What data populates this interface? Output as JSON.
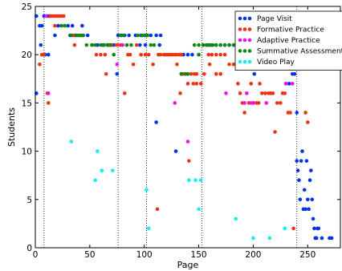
{
  "chart_data": {
    "type": "scatter",
    "title": "",
    "xlabel": "Page",
    "ylabel": "Students",
    "xlim": [
      0,
      280
    ],
    "ylim": [
      0,
      25
    ],
    "xticks": [
      0,
      50,
      100,
      150,
      200,
      250
    ],
    "yticks": [
      0,
      5,
      10,
      15,
      20,
      25
    ],
    "vertical_dotted_lines_x": [
      8,
      76,
      102,
      153,
      240
    ],
    "legend_position": "top-right",
    "series": [
      {
        "name": "Page Visit",
        "color": "#0033ee",
        "points": [
          [
            1,
            24
          ],
          [
            4,
            23
          ],
          [
            6,
            23
          ],
          [
            8,
            24
          ],
          [
            11,
            24
          ],
          [
            13,
            24
          ],
          [
            1,
            16
          ],
          [
            5,
            21
          ],
          [
            9,
            20
          ],
          [
            12,
            20
          ],
          [
            21,
            23
          ],
          [
            30,
            23
          ],
          [
            34,
            23
          ],
          [
            43,
            23
          ],
          [
            18,
            22
          ],
          [
            32,
            22
          ],
          [
            37,
            22
          ],
          [
            42,
            22
          ],
          [
            48,
            22
          ],
          [
            52,
            21
          ],
          [
            57,
            21
          ],
          [
            62,
            21
          ],
          [
            67,
            21
          ],
          [
            72,
            21
          ],
          [
            76,
            22
          ],
          [
            79,
            22
          ],
          [
            82,
            22
          ],
          [
            86,
            22
          ],
          [
            92,
            22
          ],
          [
            97,
            22
          ],
          [
            101,
            22
          ],
          [
            106,
            22
          ],
          [
            111,
            22
          ],
          [
            115,
            22
          ],
          [
            75,
            18
          ],
          [
            96,
            21
          ],
          [
            101,
            21
          ],
          [
            114,
            21
          ],
          [
            136,
            20
          ],
          [
            140,
            20
          ],
          [
            144,
            20
          ],
          [
            150,
            20
          ],
          [
            154,
            21
          ],
          [
            158,
            21
          ],
          [
            162,
            21
          ],
          [
            166,
            21
          ],
          [
            170,
            21
          ],
          [
            174,
            21
          ],
          [
            178,
            21
          ],
          [
            182,
            21
          ],
          [
            186,
            21
          ],
          [
            190,
            21
          ],
          [
            194,
            21
          ],
          [
            198,
            21
          ],
          [
            202,
            21
          ],
          [
            206,
            21
          ],
          [
            210,
            21
          ],
          [
            214,
            21
          ],
          [
            218,
            21
          ],
          [
            222,
            21
          ],
          [
            226,
            21
          ],
          [
            230,
            21
          ],
          [
            234,
            21
          ],
          [
            198,
            19
          ],
          [
            206,
            19
          ],
          [
            214,
            19
          ],
          [
            222,
            19
          ],
          [
            230,
            19
          ],
          [
            235,
            19
          ],
          [
            238,
            19
          ],
          [
            201,
            18
          ],
          [
            230,
            17
          ],
          [
            233,
            17
          ],
          [
            236,
            18
          ],
          [
            238,
            18
          ],
          [
            240,
            14
          ],
          [
            111,
            13
          ],
          [
            129,
            10
          ],
          [
            240,
            9
          ],
          [
            241,
            8
          ],
          [
            242,
            7
          ],
          [
            243,
            5
          ],
          [
            244,
            9
          ],
          [
            245,
            10
          ],
          [
            246,
            4
          ],
          [
            247,
            6
          ],
          [
            248,
            4
          ],
          [
            249,
            9
          ],
          [
            250,
            5
          ],
          [
            251,
            4
          ],
          [
            252,
            7
          ],
          [
            253,
            8
          ],
          [
            254,
            5
          ],
          [
            255,
            3
          ],
          [
            256,
            2
          ],
          [
            257,
            1
          ],
          [
            258,
            1
          ],
          [
            259,
            2
          ],
          [
            260,
            2
          ],
          [
            263,
            1
          ],
          [
            270,
            1
          ],
          [
            272,
            1
          ]
        ]
      },
      {
        "name": "Formative Practice",
        "color": "#ee3311",
        "points": [
          [
            4,
            19
          ],
          [
            6,
            20
          ],
          [
            8,
            20
          ],
          [
            11,
            16
          ],
          [
            12,
            15
          ],
          [
            14,
            24
          ],
          [
            16,
            24
          ],
          [
            18,
            24
          ],
          [
            20,
            24
          ],
          [
            22,
            24
          ],
          [
            24,
            24
          ],
          [
            26,
            24
          ],
          [
            18,
            23
          ],
          [
            35,
            22
          ],
          [
            36,
            21
          ],
          [
            40,
            22
          ],
          [
            44,
            22
          ],
          [
            56,
            20
          ],
          [
            60,
            20
          ],
          [
            64,
            20
          ],
          [
            65,
            18
          ],
          [
            68,
            21
          ],
          [
            70,
            21
          ],
          [
            75,
            21
          ],
          [
            78,
            21
          ],
          [
            80,
            21
          ],
          [
            84,
            21
          ],
          [
            82,
            16
          ],
          [
            85,
            20
          ],
          [
            87,
            20
          ],
          [
            90,
            19
          ],
          [
            93,
            21
          ],
          [
            97,
            20
          ],
          [
            101,
            20
          ],
          [
            104,
            20
          ],
          [
            108,
            19
          ],
          [
            113,
            20
          ],
          [
            115,
            20
          ],
          [
            118,
            20
          ],
          [
            120,
            20
          ],
          [
            122,
            20
          ],
          [
            124,
            20
          ],
          [
            126,
            20
          ],
          [
            128,
            20
          ],
          [
            130,
            20
          ],
          [
            132,
            20
          ],
          [
            134,
            20
          ],
          [
            130,
            19
          ],
          [
            134,
            18
          ],
          [
            136,
            18
          ],
          [
            138,
            18
          ],
          [
            133,
            16
          ],
          [
            140,
            17
          ],
          [
            143,
            18
          ],
          [
            146,
            18
          ],
          [
            148,
            18
          ],
          [
            145,
            17
          ],
          [
            148,
            17
          ],
          [
            152,
            17
          ],
          [
            155,
            18
          ],
          [
            159,
            20
          ],
          [
            162,
            20
          ],
          [
            166,
            20
          ],
          [
            170,
            20
          ],
          [
            174,
            20
          ],
          [
            160,
            19
          ],
          [
            166,
            18
          ],
          [
            170,
            18
          ],
          [
            178,
            19
          ],
          [
            182,
            19
          ],
          [
            186,
            17
          ],
          [
            188,
            16
          ],
          [
            190,
            15
          ],
          [
            192,
            15
          ],
          [
            194,
            16
          ],
          [
            196,
            15
          ],
          [
            198,
            17
          ],
          [
            200,
            15
          ],
          [
            203,
            15
          ],
          [
            205,
            15
          ],
          [
            206,
            17
          ],
          [
            208,
            16
          ],
          [
            211,
            16
          ],
          [
            214,
            16
          ],
          [
            216,
            16
          ],
          [
            218,
            16
          ],
          [
            220,
            12
          ],
          [
            222,
            15
          ],
          [
            225,
            15
          ],
          [
            227,
            16
          ],
          [
            229,
            16
          ],
          [
            232,
            14
          ],
          [
            234,
            14
          ],
          [
            237,
            2
          ],
          [
            248,
            14
          ],
          [
            250,
            13
          ],
          [
            112,
            4
          ],
          [
            141,
            9
          ],
          [
            192,
            14
          ]
        ]
      },
      {
        "name": "Adaptive Practice",
        "color": "#ee11ee",
        "points": [
          [
            10,
            24
          ],
          [
            12,
            16
          ],
          [
            75,
            19
          ],
          [
            80,
            21
          ],
          [
            128,
            15
          ],
          [
            134,
            18
          ],
          [
            140,
            11
          ],
          [
            175,
            16
          ],
          [
            192,
            15
          ],
          [
            194,
            16
          ],
          [
            198,
            15
          ],
          [
            200,
            15
          ],
          [
            212,
            15
          ],
          [
            230,
            17
          ],
          [
            236,
            17
          ],
          [
            238,
            19
          ]
        ]
      },
      {
        "name": "Summative Assessment",
        "color": "#118811",
        "points": [
          [
            24,
            23
          ],
          [
            27,
            23
          ],
          [
            33,
            22
          ],
          [
            38,
            22
          ],
          [
            40,
            22
          ],
          [
            42,
            22
          ],
          [
            44,
            22
          ],
          [
            47,
            21
          ],
          [
            52,
            21
          ],
          [
            55,
            21
          ],
          [
            60,
            21
          ],
          [
            63,
            21
          ],
          [
            66,
            21
          ],
          [
            69,
            21
          ],
          [
            72,
            20
          ],
          [
            78,
            22
          ],
          [
            81,
            22
          ],
          [
            84,
            21
          ],
          [
            88,
            21
          ],
          [
            94,
            22
          ],
          [
            98,
            22
          ],
          [
            100,
            22
          ],
          [
            103,
            22
          ],
          [
            106,
            21
          ],
          [
            109,
            21
          ],
          [
            134,
            18
          ],
          [
            138,
            18
          ],
          [
            140,
            18
          ],
          [
            146,
            21
          ],
          [
            150,
            21
          ],
          [
            154,
            21
          ],
          [
            157,
            21
          ],
          [
            160,
            21
          ],
          [
            163,
            21
          ],
          [
            166,
            21
          ],
          [
            170,
            21
          ],
          [
            174,
            21
          ],
          [
            178,
            21
          ],
          [
            182,
            21
          ],
          [
            186,
            21
          ],
          [
            190,
            21
          ],
          [
            194,
            21
          ],
          [
            198,
            21
          ],
          [
            202,
            21
          ],
          [
            206,
            21
          ],
          [
            210,
            21
          ],
          [
            214,
            21
          ],
          [
            218,
            21
          ],
          [
            222,
            21
          ],
          [
            226,
            21
          ],
          [
            230,
            21
          ],
          [
            234,
            21
          ],
          [
            238,
            21
          ],
          [
            150,
            20
          ],
          [
            238,
            20
          ]
        ]
      },
      {
        "name": "Video Play",
        "color": "#11eeee",
        "points": [
          [
            33,
            11
          ],
          [
            55,
            7
          ],
          [
            57,
            10
          ],
          [
            61,
            8
          ],
          [
            71,
            8
          ],
          [
            102,
            6
          ],
          [
            104,
            2
          ],
          [
            141,
            7
          ],
          [
            147,
            7
          ],
          [
            150,
            4
          ],
          [
            152,
            7
          ],
          [
            184,
            3
          ],
          [
            200,
            1
          ],
          [
            215,
            1
          ],
          [
            229,
            2
          ]
        ]
      }
    ]
  }
}
